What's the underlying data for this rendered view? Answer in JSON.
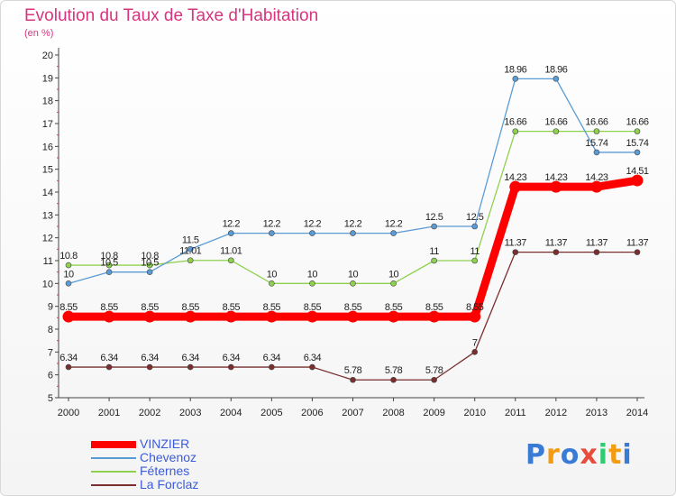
{
  "page": {
    "title": "Evolution du Taux de Taxe d'Habitation",
    "subtitle": "(en %)"
  },
  "chart_data": {
    "type": "line",
    "title": "Evolution du Taux de Taxe d'Habitation",
    "subtitle": "(en %)",
    "xlabel": "",
    "ylabel": "",
    "x": [
      "2000",
      "2001",
      "2002",
      "2003",
      "2004",
      "2005",
      "2006",
      "2007",
      "2008",
      "2009",
      "2010",
      "2011",
      "2012",
      "2013",
      "2014"
    ],
    "ylim": [
      5,
      20
    ],
    "yticks": [
      5,
      6,
      7,
      8,
      9,
      10,
      11,
      12,
      13,
      14,
      15,
      16,
      17,
      18,
      19,
      20
    ],
    "grid": false,
    "legend_position": "bottom-left",
    "series": [
      {
        "name": "VINZIER",
        "color": "#ff0000",
        "values": [
          8.55,
          8.55,
          8.55,
          8.55,
          8.55,
          8.55,
          8.55,
          8.55,
          8.55,
          8.55,
          8.55,
          14.23,
          14.23,
          14.23,
          14.51
        ],
        "labels": [
          "8.55",
          "8.55",
          "8.55",
          "8.55",
          "8.55",
          "8.55",
          "8.55",
          "8.55",
          "8.55",
          "8.55",
          "8.55",
          "14.23",
          "14.23",
          "14.23",
          "14.51"
        ]
      },
      {
        "name": "Chevenoz",
        "color": "#5b9bd5",
        "values": [
          10,
          10.5,
          10.5,
          11.5,
          12.2,
          12.2,
          12.2,
          12.2,
          12.2,
          12.5,
          12.5,
          18.96,
          18.96,
          15.74,
          15.74
        ],
        "labels": [
          "10",
          "10.5",
          "10.5",
          "11.5",
          "12.2",
          "12.2",
          "12.2",
          "12.2",
          "12.2",
          "12.5",
          "12.5",
          "18.96",
          "18.96",
          "15.74",
          "15.74"
        ]
      },
      {
        "name": "Féternes",
        "color": "#8fd14f",
        "values": [
          10.8,
          10.8,
          10.8,
          11.01,
          11.01,
          10,
          10,
          10,
          10,
          11,
          11,
          16.66,
          16.66,
          16.66,
          16.66
        ],
        "labels": [
          "10.8",
          "10.8",
          "10.8",
          "11.01",
          "11.01",
          "10",
          "10",
          "10",
          "10",
          "11",
          "11",
          "16.66",
          "16.66",
          "16.66",
          "16.66"
        ]
      },
      {
        "name": "La Forclaz",
        "color": "#7a2e2e",
        "values": [
          6.34,
          6.34,
          6.34,
          6.34,
          6.34,
          6.34,
          6.34,
          5.78,
          5.78,
          5.78,
          7,
          11.37,
          11.37,
          11.37,
          11.37
        ],
        "labels": [
          "6.34",
          "6.34",
          "6.34",
          "6.34",
          "6.34",
          "6.34",
          "6.34",
          "5.78",
          "5.78",
          "5.78",
          "7",
          "11.37",
          "11.37",
          "11.37",
          "11.37"
        ]
      }
    ]
  },
  "legend": {
    "items": [
      "VINZIER",
      "Chevenoz",
      "Féternes",
      "La Forclaz"
    ]
  },
  "logo": {
    "letters": [
      {
        "ch": "P",
        "color": "#3a7bd5"
      },
      {
        "ch": "r",
        "color": "#f39c12"
      },
      {
        "ch": "o",
        "color": "#3a7bd5"
      },
      {
        "ch": "x",
        "color": "#e74c3c"
      },
      {
        "ch": "i",
        "color": "#2ecc71"
      },
      {
        "ch": "t",
        "color": "#f39c12"
      },
      {
        "ch": "i",
        "color": "#3a7bd5"
      }
    ]
  }
}
